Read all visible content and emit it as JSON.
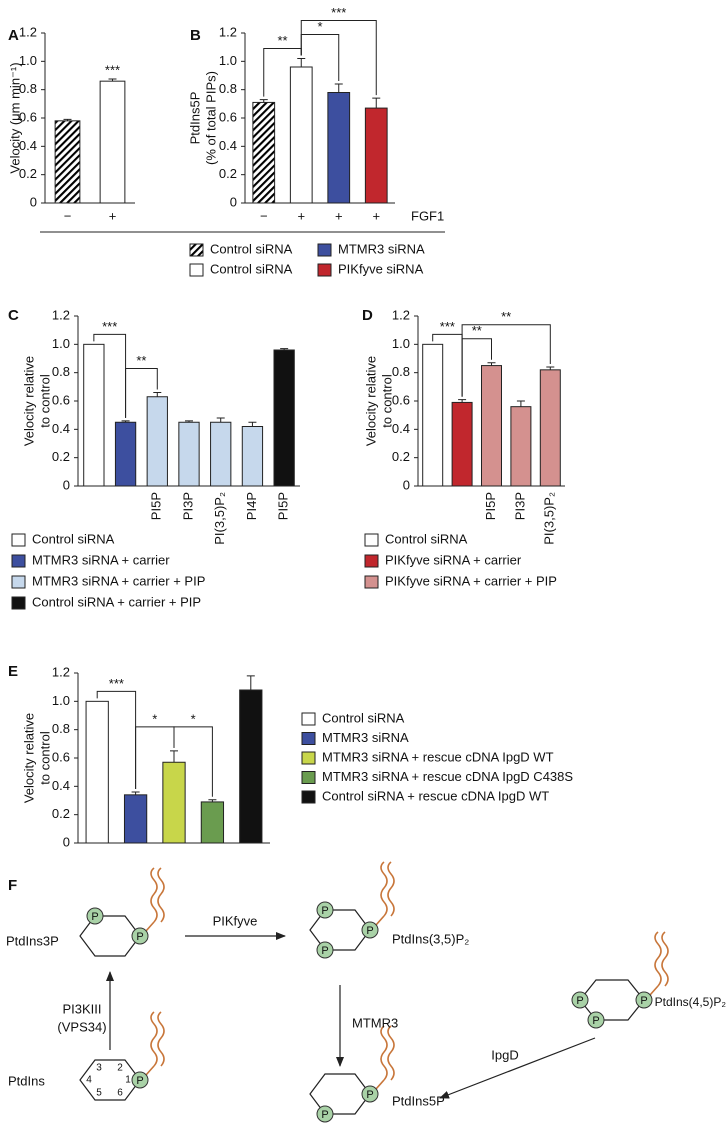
{
  "chart_data": [
    {
      "panel": "A",
      "type": "bar",
      "ylabel": [
        "Velocity (μm min⁻¹)"
      ],
      "categories": [
        "−",
        "+"
      ],
      "values": [
        0.58,
        0.86
      ],
      "errors": [
        0.01,
        0.015
      ],
      "colors": [
        "#ffffff",
        "#ffffff"
      ],
      "hatched": [
        true,
        false
      ],
      "ylim": [
        0,
        1.2
      ],
      "yticks": [
        0,
        0.2,
        0.4,
        0.6,
        0.8,
        {
          "value": 1,
          "label": "1.0"
        },
        1.2
      ],
      "annotations": [
        {
          "text": "***",
          "from": 1,
          "to": 1
        }
      ]
    },
    {
      "panel": "B",
      "type": "bar",
      "ylabel": [
        "PtdIns5P",
        "(% of total PIPs)"
      ],
      "xlabel": "FGF1",
      "categories": [
        "−",
        "+",
        "+",
        "+"
      ],
      "values": [
        0.71,
        0.96,
        0.78,
        0.67
      ],
      "errors": [
        0.02,
        0.06,
        0.06,
        0.07
      ],
      "colors": [
        "#ffffff",
        "#ffffff",
        "#3d4f9f",
        "#c1272d"
      ],
      "hatched": [
        true,
        false,
        false,
        false
      ],
      "ylim": [
        0,
        1.2
      ],
      "yticks": [
        0,
        0.2,
        0.4,
        0.6,
        0.8,
        {
          "value": 1,
          "label": "1.0"
        },
        1.2
      ],
      "annotations": [
        {
          "text": "**",
          "from": 0,
          "to": 1
        },
        {
          "text": "*",
          "from": 1,
          "to": 2
        },
        {
          "text": "***",
          "from": 1,
          "to": 3
        }
      ],
      "legend": [
        {
          "label": "Control siRNA",
          "color": "#ffffff",
          "hatched": true
        },
        {
          "label": "Control siRNA",
          "color": "#ffffff",
          "hatched": false
        },
        {
          "label": "MTMR3 siRNA",
          "color": "#3d4f9f",
          "hatched": false
        },
        {
          "label": "PIKfyve siRNA",
          "color": "#c1272d",
          "hatched": false
        }
      ]
    },
    {
      "panel": "C",
      "type": "bar",
      "ylabel": [
        "Velocity relative",
        "to control"
      ],
      "categories": [
        null,
        null,
        "PI5P",
        "PI3P",
        "PI(3,5)P₂",
        "PI4P",
        "PI5P"
      ],
      "values": [
        1,
        0.45,
        0.63,
        0.45,
        0.45,
        0.42,
        0.96
      ],
      "errors": [
        null,
        0.01,
        0.03,
        0.01,
        0.03,
        0.03,
        0.01
      ],
      "colors": [
        "#ffffff",
        "#3d4f9f",
        "#c6d8ec",
        "#c6d8ec",
        "#c6d8ec",
        "#c6d8ec",
        "#111111"
      ],
      "ylim": [
        0,
        1.2
      ],
      "yticks": [
        0,
        0.2,
        0.4,
        0.6,
        0.8,
        {
          "value": 1,
          "label": "1.0"
        },
        1.2
      ],
      "annotations": [
        {
          "text": "***",
          "from": 0,
          "to": 1
        },
        {
          "text": "**",
          "from": 1,
          "to": 2
        }
      ],
      "legend": [
        {
          "label": "Control siRNA",
          "color": "#ffffff"
        },
        {
          "label": "MTMR3 siRNA + carrier",
          "color": "#3d4f9f"
        },
        {
          "label": "MTMR3 siRNA + carrier + PIP",
          "color": "#c6d8ec"
        },
        {
          "label": "Control siRNA + carrier + PIP",
          "color": "#111111"
        }
      ]
    },
    {
      "panel": "D",
      "type": "bar",
      "ylabel": [
        "Velocity relative",
        "to control"
      ],
      "categories": [
        null,
        null,
        "PI5P",
        "PI3P",
        "PI(3,5)P₂"
      ],
      "values": [
        1,
        0.59,
        0.85,
        0.56,
        0.82
      ],
      "errors": [
        null,
        0.02,
        0.02,
        0.04,
        0.02
      ],
      "colors": [
        "#ffffff",
        "#c1272d",
        "#d4918f",
        "#d4918f",
        "#d4918f"
      ],
      "ylim": [
        0,
        1.2
      ],
      "yticks": [
        0,
        0.2,
        0.4,
        0.6,
        0.8,
        {
          "value": 1,
          "label": "1.0"
        },
        1.2
      ],
      "annotations": [
        {
          "text": "***",
          "from": 0,
          "to": 1
        },
        {
          "text": "**",
          "from": 1,
          "to": 2
        },
        {
          "text": "**",
          "from": 1,
          "to": 4
        }
      ],
      "legend": [
        {
          "label": "Control siRNA",
          "color": "#ffffff"
        },
        {
          "label": "PIKfyve siRNA + carrier",
          "color": "#c1272d"
        },
        {
          "label": "PIKfyve siRNA + carrier + PIP",
          "color": "#d4918f"
        }
      ]
    },
    {
      "panel": "E",
      "type": "bar",
      "ylabel": [
        "Velocity relative",
        "to control"
      ],
      "values": [
        1,
        0.34,
        0.57,
        0.29,
        1.08
      ],
      "errors": [
        null,
        0.02,
        0.08,
        0.015,
        0.1
      ],
      "colors": [
        "#ffffff",
        "#3d4f9f",
        "#c8d64a",
        "#6a9c4f",
        "#111111"
      ],
      "ylim": [
        0,
        1.2
      ],
      "yticks": [
        0,
        0.2,
        0.4,
        0.6,
        0.8,
        {
          "value": 1,
          "label": "1.0"
        },
        1.2
      ],
      "annotations": [
        {
          "text": "***",
          "from": 0,
          "to": 1
        },
        {
          "text": "*",
          "from": 1,
          "to": 2
        },
        {
          "text": "*",
          "from": 2,
          "to": 3
        }
      ],
      "legend": [
        {
          "label": "Control siRNA",
          "color": "#ffffff"
        },
        {
          "label": "MTMR3 siRNA",
          "color": "#3d4f9f"
        },
        {
          "label": "MTMR3 siRNA + rescue cDNA IpgD WT",
          "color": "#c8d64a"
        },
        {
          "label": "MTMR3 siRNA + rescue cDNA IpgD C438S",
          "color": "#6a9c4f"
        },
        {
          "label": "Control siRNA + rescue cDNA IpgD WT",
          "color": "#111111"
        }
      ]
    }
  ],
  "diagram": {
    "panel": "F",
    "compounds": [
      "PtdIns3P",
      "PtdIns(3,5)P₂",
      "PtdIns(4,5)P₂",
      "PtdIns",
      "PtdIns5P"
    ],
    "enzymes": [
      "PIKfyve",
      "MTMR3",
      "IpgD",
      "PI3KIII",
      "(VPS34)"
    ],
    "phosphate": "P",
    "ring_positions": [
      "1",
      "2",
      "3",
      "4",
      "5",
      "6"
    ]
  }
}
